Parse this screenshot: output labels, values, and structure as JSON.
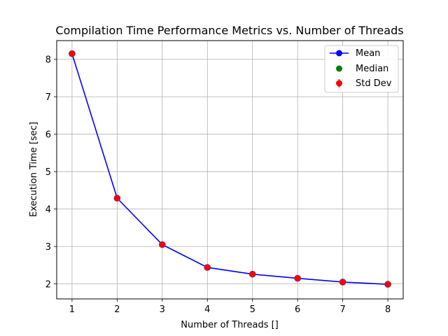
{
  "chart_data": {
    "type": "line",
    "title": "Compilation Time Performance Metrics vs. Number of Threads",
    "xlabel": "Number of Threads []",
    "ylabel": "Execution Time [sec]",
    "x": [
      1,
      2,
      3,
      4,
      5,
      6,
      7,
      8
    ],
    "xlim": [
      0.66,
      8.34
    ],
    "ylim": [
      1.6,
      8.5
    ],
    "xticks": [
      1,
      2,
      3,
      4,
      5,
      6,
      7,
      8
    ],
    "yticks": [
      2,
      3,
      4,
      5,
      6,
      7,
      8
    ],
    "grid": true,
    "legend_position": "top-right",
    "series": [
      {
        "name": "Mean",
        "style": "line-marker",
        "color": "#0000ff",
        "values": [
          8.15,
          4.29,
          3.05,
          2.44,
          2.26,
          2.15,
          2.05,
          1.99
        ]
      },
      {
        "name": "Median",
        "style": "marker",
        "color": "#008000",
        "values": [
          8.15,
          4.29,
          3.05,
          2.44,
          2.26,
          2.15,
          2.05,
          1.99
        ]
      },
      {
        "name": "Std Dev",
        "style": "errorbar",
        "color": "#ff0000",
        "values": [
          8.15,
          4.29,
          3.05,
          2.44,
          2.26,
          2.15,
          2.05,
          1.99
        ],
        "errors": [
          0.03,
          0.02,
          0.02,
          0.02,
          0.02,
          0.02,
          0.02,
          0.02
        ]
      }
    ]
  }
}
